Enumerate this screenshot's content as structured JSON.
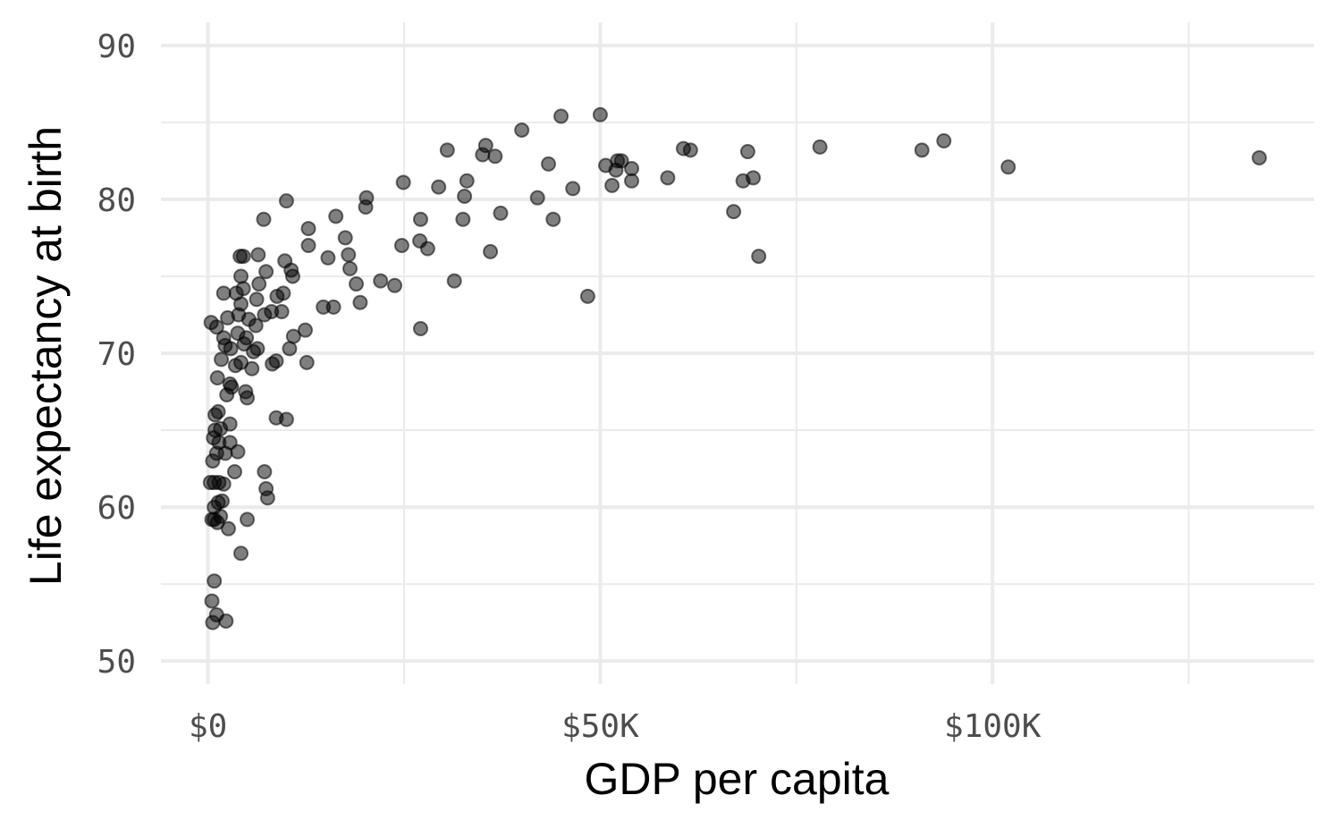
{
  "chart_data": {
    "type": "scatter",
    "xlabel": "GDP per capita",
    "ylabel": "Life expectancy at birth",
    "xlim": [
      -6000,
      141000
    ],
    "ylim": [
      48.5,
      91.5
    ],
    "x_major_ticks": [
      0,
      50000,
      100000
    ],
    "x_tick_labels": [
      "$0",
      "$50K",
      "$100K"
    ],
    "x_minor_ticks": [
      25000,
      75000,
      125000
    ],
    "y_major_ticks": [
      50,
      60,
      70,
      80,
      90
    ],
    "y_tick_labels": [
      "50",
      "60",
      "70",
      "80",
      "90"
    ],
    "y_minor_ticks": [
      55,
      65,
      75,
      85
    ],
    "grid": true,
    "legend": "none",
    "point_color": "#000000",
    "point_opacity": 0.5,
    "points": [
      [
        600,
        52.5
      ],
      [
        1100,
        53.0
      ],
      [
        2300,
        52.6
      ],
      [
        500,
        53.9
      ],
      [
        800,
        55.2
      ],
      [
        4200,
        57.0
      ],
      [
        500,
        59.2
      ],
      [
        800,
        59.2
      ],
      [
        1200,
        59.0
      ],
      [
        1600,
        59.4
      ],
      [
        2600,
        58.6
      ],
      [
        5000,
        59.2
      ],
      [
        800,
        60.0
      ],
      [
        1300,
        60.3
      ],
      [
        1800,
        60.4
      ],
      [
        300,
        61.6
      ],
      [
        800,
        61.6
      ],
      [
        1400,
        61.6
      ],
      [
        2000,
        61.5
      ],
      [
        3400,
        62.3
      ],
      [
        7400,
        61.2
      ],
      [
        7600,
        60.6
      ],
      [
        7200,
        62.3
      ],
      [
        600,
        63.0
      ],
      [
        1100,
        63.5
      ],
      [
        2200,
        63.5
      ],
      [
        3800,
        63.6
      ],
      [
        700,
        64.5
      ],
      [
        1400,
        64.2
      ],
      [
        2800,
        64.2
      ],
      [
        900,
        65.0
      ],
      [
        1600,
        65.1
      ],
      [
        2800,
        65.4
      ],
      [
        900,
        66.0
      ],
      [
        1300,
        66.2
      ],
      [
        8700,
        65.8
      ],
      [
        10000,
        65.7
      ],
      [
        2400,
        67.3
      ],
      [
        3000,
        67.8
      ],
      [
        4800,
        67.5
      ],
      [
        5000,
        67.1
      ],
      [
        1200,
        68.4
      ],
      [
        2800,
        68.0
      ],
      [
        1700,
        69.6
      ],
      [
        3500,
        69.2
      ],
      [
        4200,
        69.4
      ],
      [
        5600,
        69.0
      ],
      [
        8700,
        69.5
      ],
      [
        8200,
        69.3
      ],
      [
        12600,
        69.4
      ],
      [
        2200,
        70.5
      ],
      [
        2900,
        70.3
      ],
      [
        4600,
        70.6
      ],
      [
        5800,
        70.1
      ],
      [
        6300,
        70.3
      ],
      [
        10400,
        70.3
      ],
      [
        2000,
        71.0
      ],
      [
        3800,
        71.3
      ],
      [
        4900,
        71.0
      ],
      [
        6100,
        71.8
      ],
      [
        10900,
        71.1
      ],
      [
        12400,
        71.5
      ],
      [
        27100,
        71.6
      ],
      [
        400,
        72.0
      ],
      [
        1100,
        71.7
      ],
      [
        2500,
        72.3
      ],
      [
        3900,
        72.5
      ],
      [
        5200,
        72.2
      ],
      [
        7200,
        72.5
      ],
      [
        8100,
        72.7
      ],
      [
        9400,
        72.7
      ],
      [
        4200,
        73.2
      ],
      [
        6200,
        73.5
      ],
      [
        8800,
        73.7
      ],
      [
        9600,
        73.9
      ],
      [
        14700,
        73.0
      ],
      [
        16000,
        73.0
      ],
      [
        19400,
        73.3
      ],
      [
        48400,
        73.7
      ],
      [
        2000,
        73.9
      ],
      [
        3600,
        73.9
      ],
      [
        4500,
        74.2
      ],
      [
        6500,
        74.5
      ],
      [
        10800,
        75.0
      ],
      [
        18900,
        74.5
      ],
      [
        22000,
        74.7
      ],
      [
        23800,
        74.4
      ],
      [
        31400,
        74.7
      ],
      [
        4200,
        75.0
      ],
      [
        7400,
        75.3
      ],
      [
        10600,
        75.4
      ],
      [
        18100,
        75.5
      ],
      [
        4100,
        76.3
      ],
      [
        4500,
        76.3
      ],
      [
        6400,
        76.4
      ],
      [
        9800,
        76.0
      ],
      [
        15300,
        76.2
      ],
      [
        17900,
        76.4
      ],
      [
        36000,
        76.6
      ],
      [
        70200,
        76.3
      ],
      [
        12800,
        77.0
      ],
      [
        17500,
        77.5
      ],
      [
        24700,
        77.0
      ],
      [
        27000,
        77.3
      ],
      [
        28000,
        76.8
      ],
      [
        7100,
        78.7
      ],
      [
        12800,
        78.1
      ],
      [
        16300,
        78.9
      ],
      [
        27100,
        78.7
      ],
      [
        32500,
        78.7
      ],
      [
        37300,
        79.1
      ],
      [
        44000,
        78.7
      ],
      [
        10000,
        79.9
      ],
      [
        20100,
        79.5
      ],
      [
        20200,
        80.1
      ],
      [
        32700,
        80.2
      ],
      [
        42000,
        80.1
      ],
      [
        67000,
        79.2
      ],
      [
        24900,
        81.1
      ],
      [
        29400,
        80.8
      ],
      [
        33000,
        81.2
      ],
      [
        46500,
        80.7
      ],
      [
        51500,
        80.9
      ],
      [
        54000,
        81.2
      ],
      [
        58600,
        81.4
      ],
      [
        68200,
        81.2
      ],
      [
        69500,
        81.4
      ],
      [
        102000,
        82.1
      ],
      [
        43400,
        82.3
      ],
      [
        50700,
        82.2
      ],
      [
        52000,
        81.9
      ],
      [
        52200,
        82.5
      ],
      [
        52700,
        82.5
      ],
      [
        54000,
        82.0
      ],
      [
        134000,
        82.7
      ],
      [
        30500,
        83.2
      ],
      [
        35000,
        82.9
      ],
      [
        36600,
        82.8
      ],
      [
        60600,
        83.3
      ],
      [
        61500,
        83.2
      ],
      [
        68800,
        83.1
      ],
      [
        78000,
        83.4
      ],
      [
        91000,
        83.2
      ],
      [
        93800,
        83.8
      ],
      [
        35400,
        83.5
      ],
      [
        40000,
        84.5
      ],
      [
        45000,
        85.4
      ],
      [
        50000,
        85.5
      ]
    ]
  }
}
